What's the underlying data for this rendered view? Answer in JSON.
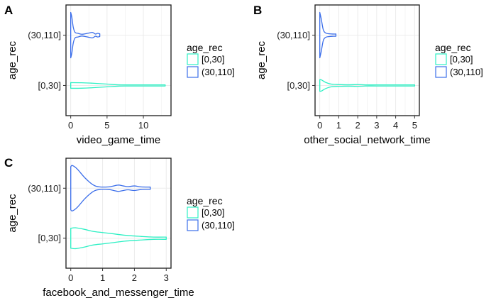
{
  "chart_data": [
    {
      "type": "violin",
      "panel_tag": "A",
      "xlabel": "video_game_time",
      "ylabel": "age_rec",
      "xlim": [
        -0.65,
        13.8
      ],
      "xticks": [
        0,
        5,
        10
      ],
      "xtick_labels": [
        "0",
        "5",
        "10"
      ],
      "xgrid_minor": [
        2.5,
        7.5,
        12.5
      ],
      "categories": [
        "[0,30]",
        "(30,110]"
      ],
      "grid": true,
      "legend": {
        "title": "age_rec",
        "position": "right",
        "entries": [
          "[0,30]",
          "(30,110]"
        ]
      },
      "series": [
        {
          "name": "[0,30]",
          "color": "#2DF0C4",
          "profile": [
            [
              0,
              0.125
            ],
            [
              1.5,
              0.12
            ],
            [
              3,
              0.1
            ],
            [
              5,
              0.06
            ],
            [
              6.5,
              0.03
            ],
            [
              8,
              0.015
            ],
            [
              10,
              0.01
            ],
            [
              13,
              0.01
            ]
          ]
        },
        {
          "name": "(30,110]",
          "color": "#3B6EEA",
          "profile": [
            [
              0,
              1.0
            ],
            [
              0.15,
              0.8
            ],
            [
              0.35,
              0.35
            ],
            [
              0.6,
              0.12
            ],
            [
              1.0,
              0.08
            ],
            [
              1.5,
              0.04
            ],
            [
              2.0,
              0.06
            ],
            [
              2.6,
              0.1
            ],
            [
              3.0,
              0.12
            ],
            [
              3.4,
              0.05
            ],
            [
              3.7,
              0.08
            ],
            [
              4.0,
              0.06
            ]
          ]
        }
      ]
    },
    {
      "type": "violin",
      "panel_tag": "B",
      "xlabel": "other_social_network_time",
      "ylabel": "age_rec",
      "xlim": [
        -0.25,
        5.25
      ],
      "xticks": [
        0,
        1,
        2,
        3,
        4,
        5
      ],
      "xtick_labels": [
        "0",
        "1",
        "2",
        "3",
        "4",
        "5"
      ],
      "xgrid_minor": [
        0.5,
        1.5,
        2.5,
        3.5,
        4.5
      ],
      "categories": [
        "[0,30]",
        "(30,110]"
      ],
      "grid": true,
      "legend": {
        "title": "age_rec",
        "position": "right",
        "entries": [
          "[0,30]",
          "(30,110]"
        ]
      },
      "series": [
        {
          "name": "[0,30]",
          "color": "#2DF0C4",
          "profile": [
            [
              0,
              0.26
            ],
            [
              0.1,
              0.24
            ],
            [
              0.3,
              0.14
            ],
            [
              0.6,
              0.06
            ],
            [
              1.0,
              0.04
            ],
            [
              1.5,
              0.03
            ],
            [
              2.0,
              0.04
            ],
            [
              2.4,
              0.02
            ],
            [
              3,
              0.015
            ],
            [
              4,
              0.012
            ],
            [
              5,
              0.012
            ]
          ]
        },
        {
          "name": "(30,110]",
          "color": "#3B6EEA",
          "profile": [
            [
              0,
              1.0
            ],
            [
              0.08,
              0.7
            ],
            [
              0.18,
              0.25
            ],
            [
              0.3,
              0.1
            ],
            [
              0.5,
              0.06
            ],
            [
              0.7,
              0.05
            ],
            [
              0.85,
              0.05
            ]
          ]
        }
      ]
    },
    {
      "type": "violin",
      "panel_tag": "C",
      "xlabel": "facebook_and_messenger_time",
      "ylabel": "age_rec",
      "xlim": [
        -0.15,
        3.15
      ],
      "xticks": [
        0,
        1,
        2,
        3
      ],
      "xtick_labels": [
        "0",
        "1",
        "2",
        "3"
      ],
      "xgrid_minor": [
        0.5,
        1.5,
        2.5
      ],
      "categories": [
        "[0,30]",
        "(30,110]"
      ],
      "grid": true,
      "legend": {
        "title": "age_rec",
        "position": "right",
        "entries": [
          "[0,30]",
          "(30,110]"
        ]
      },
      "series": [
        {
          "name": "[0,30]",
          "color": "#2DF0C4",
          "profile": [
            [
              0,
              0.44
            ],
            [
              0.15,
              0.46
            ],
            [
              0.4,
              0.4
            ],
            [
              0.7,
              0.3
            ],
            [
              1.0,
              0.25
            ],
            [
              1.3,
              0.2
            ],
            [
              1.7,
              0.13
            ],
            [
              2.2,
              0.08
            ],
            [
              2.6,
              0.05
            ],
            [
              3.0,
              0.05
            ]
          ]
        },
        {
          "name": "(30,110]",
          "color": "#3B6EEA",
          "profile": [
            [
              0,
              0.95
            ],
            [
              0.05,
              1.0
            ],
            [
              0.2,
              0.85
            ],
            [
              0.45,
              0.45
            ],
            [
              0.7,
              0.15
            ],
            [
              0.9,
              0.06
            ],
            [
              1.2,
              0.06
            ],
            [
              1.35,
              0.1
            ],
            [
              1.5,
              0.14
            ],
            [
              1.65,
              0.1
            ],
            [
              1.8,
              0.07
            ],
            [
              2.0,
              0.1
            ],
            [
              2.2,
              0.06
            ],
            [
              2.5,
              0.05
            ]
          ]
        }
      ]
    }
  ]
}
